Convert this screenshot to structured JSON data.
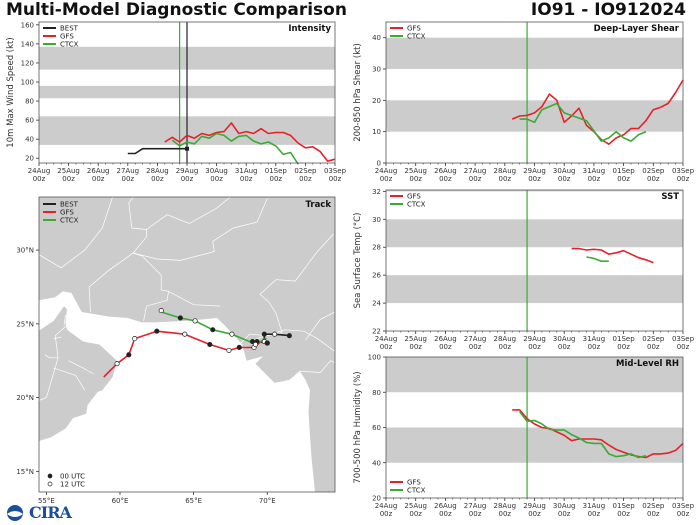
{
  "header": {
    "title": "Multi-Model Diagnostic Comparison",
    "storm": "IO91 - IO912024"
  },
  "logo": {
    "text": "CIRA"
  },
  "colors": {
    "BEST": "#222222",
    "GFS": "#e8202a",
    "CTCX": "#3aaa35",
    "band": "#cccccc",
    "land": "#cccccc",
    "border": "#ffffff"
  },
  "chart_data": [
    {
      "id": "intensity",
      "type": "line",
      "title": "Intensity",
      "ylabel": "10m Max Wind Speed (kt)",
      "xlabel": "",
      "x_ticks": [
        "24Aug\n00z",
        "25Aug\n00z",
        "26Aug\n00z",
        "27Aug\n00z",
        "28Aug\n00z",
        "29Aug\n00z",
        "30Aug\n00z",
        "31Aug\n00z",
        "01Sep\n00z",
        "02Sep\n00z",
        "03Sep\n00z"
      ],
      "xlim_hours": [
        0,
        240
      ],
      "ylim": [
        15,
        163
      ],
      "y_ticks": [
        20,
        40,
        60,
        80,
        100,
        120,
        140,
        160
      ],
      "bands": [
        [
          34,
          64
        ],
        [
          83,
          96
        ],
        [
          113,
          137
        ]
      ],
      "vlines": [
        {
          "hour": 114,
          "color": "CTCX"
        },
        {
          "hour": 120,
          "color": "BEST"
        }
      ],
      "legend": [
        "BEST",
        "GFS",
        "CTCX"
      ],
      "legend_position": "top-left",
      "series": [
        {
          "name": "BEST",
          "x_hours": [
            72,
            78,
            84,
            90,
            96,
            102,
            108,
            114,
            120
          ],
          "values": [
            25,
            25,
            30,
            30,
            30,
            30,
            30,
            30,
            30
          ],
          "end_marker": true
        },
        {
          "name": "GFS",
          "x_hours": [
            102,
            108,
            114,
            120,
            126,
            132,
            138,
            144,
            150,
            156,
            162,
            168,
            174,
            180,
            186,
            192,
            198,
            204,
            210,
            216,
            222,
            228,
            234,
            240
          ],
          "values": [
            37,
            42,
            37,
            44,
            41,
            46,
            44,
            47,
            48,
            57,
            46,
            48,
            46,
            51,
            46,
            47,
            47,
            44,
            36,
            31,
            32,
            27,
            17,
            19
          ]
        },
        {
          "name": "CTCX",
          "x_hours": [
            108,
            114,
            120,
            126,
            132,
            138,
            144,
            150,
            156,
            162,
            168,
            174,
            180,
            186,
            192,
            198,
            204,
            210
          ],
          "values": [
            39,
            33,
            37,
            35,
            43,
            41,
            46,
            44,
            38,
            43,
            44,
            38,
            35,
            37,
            33,
            24,
            26,
            14
          ]
        }
      ]
    },
    {
      "id": "shear",
      "type": "line",
      "title": "Deep-Layer Shear",
      "ylabel": "200-850 hPa Shear (kt)",
      "xlabel": "",
      "x_ticks": [
        "24Aug\n00z",
        "25Aug\n00z",
        "26Aug\n00z",
        "27Aug\n00z",
        "28Aug\n00z",
        "29Aug\n00z",
        "30Aug\n00z",
        "31Aug\n00z",
        "01Sep\n00z",
        "02Sep\n00z",
        "03Sep\n00z"
      ],
      "xlim_hours": [
        0,
        240
      ],
      "ylim": [
        0,
        45
      ],
      "y_ticks": [
        0,
        10,
        20,
        30,
        40
      ],
      "bands": [
        [
          10,
          20
        ],
        [
          30,
          40
        ]
      ],
      "vlines": [
        {
          "hour": 114,
          "color": "CTCX"
        }
      ],
      "legend": [
        "GFS",
        "CTCX"
      ],
      "legend_position": "top-left",
      "series": [
        {
          "name": "GFS",
          "x_hours": [
            102,
            108,
            114,
            120,
            126,
            132,
            138,
            144,
            150,
            156,
            162,
            168,
            174,
            180,
            186,
            192,
            198,
            204,
            210,
            216,
            222,
            228,
            234,
            240
          ],
          "values": [
            14,
            15,
            15.2,
            16,
            18,
            22,
            20,
            13,
            15,
            17.5,
            12,
            10,
            7.5,
            6,
            8,
            9,
            11,
            11,
            13.5,
            17,
            17.8,
            19,
            22.5,
            26.5
          ]
        },
        {
          "name": "CTCX",
          "x_hours": [
            108,
            114,
            120,
            126,
            138,
            144,
            162,
            174,
            180,
            186,
            192,
            198,
            204,
            210
          ],
          "values": [
            14,
            14,
            13,
            17,
            19,
            16,
            13.5,
            7,
            8,
            10,
            8,
            7,
            9,
            10
          ]
        }
      ]
    },
    {
      "id": "sst",
      "type": "line",
      "title": "SST",
      "ylabel": "Sea Surface Temp (°C)",
      "xlabel": "",
      "x_ticks": [
        "24Aug\n00z",
        "25Aug\n00z",
        "26Aug\n00z",
        "27Aug\n00z",
        "28Aug\n00z",
        "29Aug\n00z",
        "30Aug\n00z",
        "31Aug\n00z",
        "01Sep\n00z",
        "02Sep\n00z",
        "03Sep\n00z"
      ],
      "xlim_hours": [
        0,
        240
      ],
      "ylim": [
        22,
        32.1
      ],
      "y_ticks": [
        22,
        24,
        26,
        28,
        30,
        32
      ],
      "bands": [
        [
          24,
          26
        ],
        [
          28,
          30
        ],
        [
          32,
          33
        ]
      ],
      "vlines": [
        {
          "hour": 114,
          "color": "CTCX"
        }
      ],
      "legend": [
        "GFS",
        "CTCX"
      ],
      "legend_position": "top-left",
      "series": [
        {
          "name": "GFS",
          "x_hours": [
            150,
            156,
            162,
            168,
            174,
            180,
            186,
            192,
            198,
            204,
            210,
            216
          ],
          "values": [
            27.9,
            27.9,
            27.8,
            27.85,
            27.8,
            27.5,
            27.6,
            27.75,
            27.5,
            27.25,
            27.1,
            26.9
          ]
        },
        {
          "name": "CTCX",
          "x_hours": [
            162,
            168,
            174,
            180
          ],
          "values": [
            27.3,
            27.2,
            27.0,
            27.0
          ]
        }
      ]
    },
    {
      "id": "rh",
      "type": "line",
      "title": "Mid-Level RH",
      "ylabel": "700-500 hPa Humidity (%)",
      "xlabel": "",
      "x_ticks": [
        "24Aug\n00z",
        "25Aug\n00z",
        "26Aug\n00z",
        "27Aug\n00z",
        "28Aug\n00z",
        "29Aug\n00z",
        "30Aug\n00z",
        "31Aug\n00z",
        "01Sep\n00z",
        "02Sep\n00z",
        "03Sep\n00z"
      ],
      "xlim_hours": [
        0,
        240
      ],
      "ylim": [
        20,
        100
      ],
      "y_ticks": [
        20,
        40,
        60,
        80,
        100
      ],
      "bands": [
        [
          40,
          60
        ],
        [
          80,
          100
        ]
      ],
      "vlines": [
        {
          "hour": 114,
          "color": "CTCX"
        }
      ],
      "legend": [
        "GFS",
        "CTCX"
      ],
      "legend_position": "bottom-left",
      "series": [
        {
          "name": "GFS",
          "x_hours": [
            102,
            108,
            114,
            120,
            126,
            132,
            138,
            144,
            150,
            156,
            162,
            168,
            174,
            180,
            186,
            192,
            198,
            204,
            210,
            216,
            222,
            228,
            234,
            240
          ],
          "values": [
            70,
            70,
            65,
            62,
            60,
            59.5,
            57.5,
            55.5,
            52.5,
            53.5,
            53.5,
            53.5,
            53,
            50,
            47.5,
            46,
            44.5,
            43.5,
            43,
            45,
            45,
            45.5,
            47,
            51
          ]
        },
        {
          "name": "CTCX",
          "x_hours": [
            108,
            114,
            120,
            126,
            132,
            138,
            144,
            150,
            156,
            162,
            168,
            174,
            180,
            186,
            192,
            198,
            204,
            210
          ],
          "values": [
            69,
            63.5,
            64,
            62,
            59,
            58.5,
            58.5,
            56,
            54,
            51.5,
            51,
            51,
            45,
            43.5,
            44,
            45,
            43,
            44
          ]
        }
      ]
    },
    {
      "id": "track",
      "type": "scatter",
      "title": "Track",
      "xlabel": "",
      "ylabel": "",
      "x_ticks": [
        "55°E",
        "60°E",
        "65°E",
        "70°E"
      ],
      "y_ticks": [
        "15°N",
        "20°N",
        "25°N",
        "30°N"
      ],
      "xlim": [
        54.5,
        74.6
      ],
      "ylim": [
        13.6,
        33.6
      ],
      "legend": [
        "BEST",
        "GFS",
        "CTCX"
      ],
      "legend_position": "top-left",
      "marker_legend": [
        {
          "symbol": "filled",
          "label": "00 UTC"
        },
        {
          "symbol": "open",
          "label": "12 UTC"
        }
      ],
      "series": [
        {
          "name": "BEST",
          "lon": [
            71.5,
            70.5,
            69.8,
            69.8,
            70.0,
            69.3,
            69.0
          ],
          "lat": [
            24.2,
            24.3,
            24.3,
            23.8,
            23.7,
            23.8,
            23.8
          ],
          "markers": [
            "filled",
            "open",
            "filled",
            "open",
            "filled",
            "filled",
            "filled"
          ]
        },
        {
          "name": "GFS",
          "lon": [
            70.0,
            69.7,
            69.1,
            68.1,
            67.4,
            66.1,
            64.4,
            62.5,
            61.0,
            60.6,
            59.8,
            58.9
          ],
          "lat": [
            23.7,
            23.9,
            23.4,
            23.4,
            23.2,
            23.6,
            24.3,
            24.5,
            24.0,
            22.9,
            22.3,
            21.4
          ],
          "markers": [
            "filled",
            "none",
            "open",
            "filled",
            "open",
            "filled",
            "open",
            "filled",
            "open",
            "filled",
            "open",
            "none"
          ]
        },
        {
          "name": "CTCX",
          "lon": [
            69.8,
            69.9,
            69.2,
            68.8,
            67.6,
            66.3,
            65.1,
            64.1,
            62.8,
            62.8
          ],
          "lat": [
            23.7,
            24.0,
            23.6,
            23.8,
            24.3,
            24.6,
            25.2,
            25.4,
            25.8,
            25.9
          ],
          "markers": [
            "none",
            "none",
            "open",
            "none",
            "open",
            "filled",
            "open",
            "filled",
            "none",
            "open"
          ]
        }
      ]
    }
  ]
}
